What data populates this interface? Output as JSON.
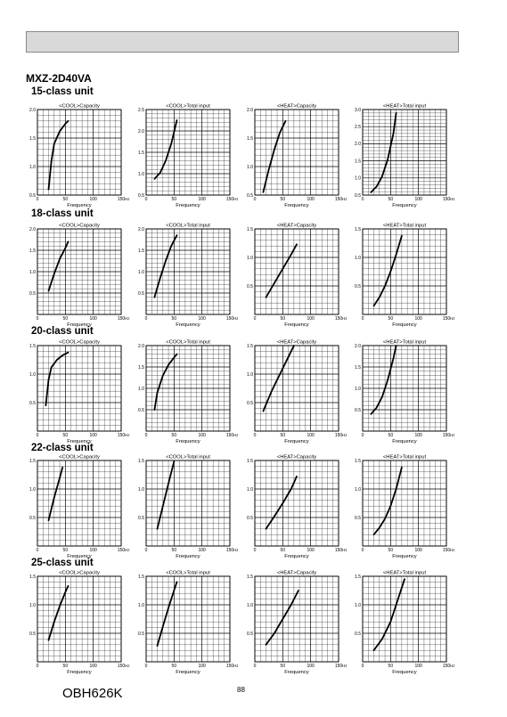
{
  "header": {
    "title": "MXZ-2D40VA"
  },
  "footer": {
    "doc_code": "OBH626K",
    "page_number": "88"
  },
  "sections": [
    {
      "label": "15-class unit"
    },
    {
      "label": "18-class unit"
    },
    {
      "label": "20-class unit"
    },
    {
      "label": "22-class unit"
    },
    {
      "label": "25-class unit"
    }
  ],
  "chart_data": [
    {
      "unit": "15-class unit",
      "title": "<COOL>Capacity",
      "type": "line",
      "xlabel": "Frequency",
      "x_unit": "Hz",
      "xlim": [
        0,
        150
      ],
      "xticks": [
        0,
        50,
        100,
        150
      ],
      "ylim": [
        0.5,
        2.0
      ],
      "yticks": [
        0.5,
        1.0,
        1.5,
        2.0
      ],
      "grid": true,
      "series": [
        {
          "x": [
            20,
            25,
            30,
            40,
            50,
            55
          ],
          "y": [
            0.6,
            1.1,
            1.4,
            1.62,
            1.75,
            1.8
          ]
        }
      ]
    },
    {
      "unit": "15-class unit",
      "title": "<COOL>Total input",
      "type": "line",
      "xlabel": "Frequency",
      "x_unit": "Hz",
      "xlim": [
        0,
        150
      ],
      "xticks": [
        0,
        50,
        100,
        150
      ],
      "ylim": [
        0.5,
        2.5
      ],
      "yticks": [
        0.5,
        1.0,
        1.5,
        2.0,
        2.5
      ],
      "grid": true,
      "series": [
        {
          "x": [
            15,
            25,
            35,
            45,
            55
          ],
          "y": [
            0.88,
            1.02,
            1.3,
            1.7,
            2.25
          ]
        }
      ]
    },
    {
      "unit": "15-class unit",
      "title": "<HEAT>Capacity",
      "type": "line",
      "xlabel": "Frequency",
      "x_unit": "Hz",
      "xlim": [
        0,
        150
      ],
      "xticks": [
        0,
        50,
        100,
        150
      ],
      "ylim": [
        0.5,
        2.0
      ],
      "yticks": [
        0.5,
        1.0,
        1.5,
        2.0
      ],
      "grid": true,
      "series": [
        {
          "x": [
            15,
            25,
            35,
            45,
            55
          ],
          "y": [
            0.55,
            0.95,
            1.3,
            1.6,
            1.8
          ]
        }
      ]
    },
    {
      "unit": "15-class unit",
      "title": "<HEAT>Total input",
      "type": "line",
      "xlabel": "Frequency",
      "x_unit": "Hz",
      "xlim": [
        0,
        150
      ],
      "xticks": [
        0,
        50,
        100,
        150
      ],
      "ylim": [
        0.5,
        3.0
      ],
      "yticks": [
        0.5,
        1.0,
        1.5,
        2.0,
        2.5,
        3.0
      ],
      "grid": true,
      "series": [
        {
          "x": [
            15,
            25,
            35,
            45,
            55,
            60
          ],
          "y": [
            0.58,
            0.75,
            1.05,
            1.55,
            2.3,
            2.9
          ]
        }
      ]
    },
    {
      "unit": "18-class unit",
      "title": "<COOL>Capacity",
      "type": "line",
      "xlabel": "Frequency",
      "x_unit": "Hz",
      "xlim": [
        0,
        150
      ],
      "xticks": [
        0,
        50,
        100,
        150
      ],
      "ylim": [
        0,
        2.0
      ],
      "yticks": [
        0.5,
        1.0,
        1.5,
        2.0
      ],
      "grid": true,
      "series": [
        {
          "x": [
            20,
            30,
            40,
            50,
            55
          ],
          "y": [
            0.55,
            0.95,
            1.3,
            1.55,
            1.7
          ]
        }
      ]
    },
    {
      "unit": "18-class unit",
      "title": "<COOL>Total input",
      "type": "line",
      "xlabel": "Frequency",
      "x_unit": "Hz",
      "xlim": [
        0,
        150
      ],
      "xticks": [
        0,
        50,
        100,
        150
      ],
      "ylim": [
        0,
        2.0
      ],
      "yticks": [
        0.5,
        1.0,
        1.5,
        2.0
      ],
      "grid": true,
      "series": [
        {
          "x": [
            15,
            25,
            35,
            45,
            55
          ],
          "y": [
            0.4,
            0.85,
            1.25,
            1.6,
            1.85
          ]
        }
      ]
    },
    {
      "unit": "18-class unit",
      "title": "<HEAT>Capacity",
      "type": "line",
      "xlabel": "Frequency",
      "x_unit": "Hz",
      "xlim": [
        0,
        150
      ],
      "xticks": [
        0,
        50,
        100,
        150
      ],
      "ylim": [
        0,
        1.5
      ],
      "yticks": [
        0.5,
        1.0,
        1.5
      ],
      "grid": true,
      "series": [
        {
          "x": [
            20,
            35,
            50,
            65,
            75
          ],
          "y": [
            0.3,
            0.55,
            0.8,
            1.05,
            1.23
          ]
        }
      ]
    },
    {
      "unit": "18-class unit",
      "title": "<HEAT>Total input",
      "type": "line",
      "xlabel": "Frequency",
      "x_unit": "Hz",
      "xlim": [
        0,
        150
      ],
      "xticks": [
        0,
        50,
        100,
        150
      ],
      "ylim": [
        0,
        1.5
      ],
      "yticks": [
        0.5,
        1.0,
        1.5
      ],
      "grid": true,
      "series": [
        {
          "x": [
            20,
            30,
            40,
            50,
            60,
            70
          ],
          "y": [
            0.15,
            0.3,
            0.5,
            0.75,
            1.05,
            1.38
          ]
        }
      ]
    },
    {
      "unit": "20-class unit",
      "title": "<COOL>Capacity",
      "type": "line",
      "xlabel": "Frequency",
      "x_unit": "Hz",
      "xlim": [
        0,
        150
      ],
      "xticks": [
        0,
        50,
        100,
        150
      ],
      "ylim": [
        0,
        1.5
      ],
      "yticks": [
        0.5,
        1.0,
        1.5
      ],
      "grid": true,
      "series": [
        {
          "x": [
            15,
            20,
            25,
            35,
            45,
            55
          ],
          "y": [
            0.45,
            0.9,
            1.12,
            1.25,
            1.33,
            1.38
          ]
        }
      ]
    },
    {
      "unit": "20-class unit",
      "title": "<COOL>Total input",
      "type": "line",
      "xlabel": "Frequency",
      "x_unit": "Hz",
      "xlim": [
        0,
        150
      ],
      "xticks": [
        0,
        50,
        100,
        150
      ],
      "ylim": [
        0,
        2.0
      ],
      "yticks": [
        0.5,
        1.0,
        1.5,
        2.0
      ],
      "grid": true,
      "series": [
        {
          "x": [
            15,
            20,
            30,
            40,
            50,
            55
          ],
          "y": [
            0.5,
            0.9,
            1.3,
            1.55,
            1.72,
            1.8
          ]
        }
      ]
    },
    {
      "unit": "20-class unit",
      "title": "<HEAT>Capacity",
      "type": "line",
      "xlabel": "Frequency",
      "x_unit": "Hz",
      "xlim": [
        0,
        150
      ],
      "xticks": [
        0,
        50,
        100,
        150
      ],
      "ylim": [
        0,
        1.5
      ],
      "yticks": [
        0.5,
        1.0,
        1.5
      ],
      "grid": true,
      "series": [
        {
          "x": [
            15,
            30,
            45,
            60,
            70
          ],
          "y": [
            0.35,
            0.7,
            1.0,
            1.3,
            1.5
          ]
        }
      ]
    },
    {
      "unit": "20-class unit",
      "title": "<HEAT>Total input",
      "type": "line",
      "xlabel": "Frequency",
      "x_unit": "Hz",
      "xlim": [
        0,
        150
      ],
      "xticks": [
        0,
        50,
        100,
        150
      ],
      "ylim": [
        0,
        2.0
      ],
      "yticks": [
        0.5,
        1.0,
        1.5,
        2.0
      ],
      "grid": true,
      "series": [
        {
          "x": [
            15,
            25,
            35,
            45,
            55,
            60
          ],
          "y": [
            0.4,
            0.55,
            0.8,
            1.2,
            1.7,
            2.0
          ]
        }
      ]
    },
    {
      "unit": "22-class unit",
      "title": "<COOL>Capacity",
      "type": "line",
      "xlabel": "Frequency",
      "x_unit": "Hz",
      "xlim": [
        0,
        150
      ],
      "xticks": [
        0,
        50,
        100,
        150
      ],
      "ylim": [
        0,
        1.5
      ],
      "yticks": [
        0.5,
        1.0,
        1.5
      ],
      "grid": true,
      "series": [
        {
          "x": [
            20,
            30,
            40,
            45
          ],
          "y": [
            0.45,
            0.85,
            1.2,
            1.38
          ]
        }
      ]
    },
    {
      "unit": "22-class unit",
      "title": "<COOL>Total input",
      "type": "line",
      "xlabel": "Frequency",
      "x_unit": "Hz",
      "xlim": [
        0,
        150
      ],
      "xticks": [
        0,
        50,
        100,
        150
      ],
      "ylim": [
        0,
        1.5
      ],
      "yticks": [
        0.5,
        1.0,
        1.5
      ],
      "grid": true,
      "series": [
        {
          "x": [
            20,
            30,
            40,
            50
          ],
          "y": [
            0.3,
            0.7,
            1.1,
            1.48
          ]
        }
      ]
    },
    {
      "unit": "22-class unit",
      "title": "<HEAT>Capacity",
      "type": "line",
      "xlabel": "Frequency",
      "x_unit": "Hz",
      "xlim": [
        0,
        150
      ],
      "xticks": [
        0,
        50,
        100,
        150
      ],
      "ylim": [
        0,
        1.5
      ],
      "yticks": [
        0.5,
        1.0,
        1.5
      ],
      "grid": true,
      "series": [
        {
          "x": [
            20,
            35,
            50,
            65,
            75
          ],
          "y": [
            0.3,
            0.52,
            0.75,
            1.0,
            1.22
          ]
        }
      ]
    },
    {
      "unit": "22-class unit",
      "title": "<HEAT>Total input",
      "type": "line",
      "xlabel": "Frequency",
      "x_unit": "Hz",
      "xlim": [
        0,
        150
      ],
      "xticks": [
        0,
        50,
        100,
        150
      ],
      "ylim": [
        0,
        1.5
      ],
      "yticks": [
        0.5,
        1.0,
        1.5
      ],
      "grid": true,
      "series": [
        {
          "x": [
            20,
            30,
            40,
            50,
            60,
            70
          ],
          "y": [
            0.2,
            0.32,
            0.48,
            0.7,
            1.0,
            1.38
          ]
        }
      ]
    },
    {
      "unit": "25-class unit",
      "title": "<COOL>Capacity",
      "type": "line",
      "xlabel": "Frequency",
      "x_unit": "Hz",
      "xlim": [
        0,
        150
      ],
      "xticks": [
        0,
        50,
        100,
        150
      ],
      "ylim": [
        0,
        1.5
      ],
      "yticks": [
        0.5,
        1.0,
        1.5
      ],
      "grid": true,
      "series": [
        {
          "x": [
            20,
            30,
            40,
            50,
            55
          ],
          "y": [
            0.38,
            0.7,
            0.98,
            1.22,
            1.33
          ]
        }
      ]
    },
    {
      "unit": "25-class unit",
      "title": "<COOL>Total input",
      "type": "line",
      "xlabel": "Frequency",
      "x_unit": "Hz",
      "xlim": [
        0,
        150
      ],
      "xticks": [
        0,
        50,
        100,
        150
      ],
      "ylim": [
        0,
        1.5
      ],
      "yticks": [
        0.5,
        1.0,
        1.5
      ],
      "grid": true,
      "series": [
        {
          "x": [
            20,
            30,
            40,
            50,
            55
          ],
          "y": [
            0.28,
            0.62,
            0.95,
            1.25,
            1.4
          ]
        }
      ]
    },
    {
      "unit": "25-class unit",
      "title": "<HEAT>Capacity",
      "type": "line",
      "xlabel": "Frequency",
      "x_unit": "Hz",
      "xlim": [
        0,
        150
      ],
      "xticks": [
        0,
        50,
        100,
        150
      ],
      "ylim": [
        0,
        1.5
      ],
      "yticks": [
        0.5,
        1.0,
        1.5
      ],
      "grid": true,
      "series": [
        {
          "x": [
            20,
            35,
            50,
            65,
            78
          ],
          "y": [
            0.3,
            0.5,
            0.75,
            1.0,
            1.25
          ]
        }
      ]
    },
    {
      "unit": "25-class unit",
      "title": "<HEAT>Total input",
      "type": "line",
      "xlabel": "Frequency",
      "x_unit": "Hz",
      "xlim": [
        0,
        150
      ],
      "xticks": [
        0,
        50,
        100,
        150
      ],
      "ylim": [
        0,
        1.5
      ],
      "yticks": [
        0.5,
        1.0,
        1.5
      ],
      "grid": true,
      "series": [
        {
          "x": [
            20,
            35,
            50,
            60,
            70,
            75
          ],
          "y": [
            0.2,
            0.4,
            0.7,
            1.0,
            1.3,
            1.45
          ]
        }
      ]
    }
  ]
}
